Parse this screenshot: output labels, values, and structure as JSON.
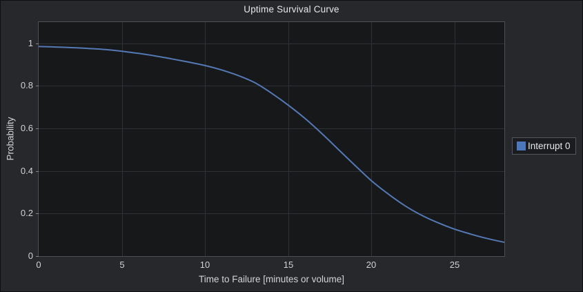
{
  "panel": {
    "background": "#26282c",
    "plot_background": "#17181a",
    "grid_color": "#2e3135",
    "axis_border_color": "#4c5055",
    "text_color": "#d1d2d3"
  },
  "chart_data": {
    "type": "line",
    "title": "Uptime Survival Curve",
    "xlabel": "Time to Failure [minutes or volume]",
    "ylabel": "Probability",
    "xlim": [
      0,
      28
    ],
    "ylim": [
      0,
      1.1
    ],
    "xtick_values": [
      0,
      5,
      10,
      15,
      20,
      25
    ],
    "xtick_labels": [
      "0",
      "5",
      "10",
      "15",
      "20",
      "25"
    ],
    "ytick_values": [
      0,
      0.2,
      0.4,
      0.6,
      0.8,
      1
    ],
    "ytick_labels": [
      "0",
      "0.2",
      "0.4",
      "0.6",
      "0.8",
      "1"
    ],
    "grid": true,
    "legend_position": "right",
    "series": [
      {
        "name": "Interrupt 0",
        "color": "#5479b5",
        "swatch_color": "#4c78bb",
        "x": [
          0,
          1,
          2,
          3,
          4,
          5,
          6,
          7,
          8,
          9,
          10,
          11,
          12,
          13,
          14,
          15,
          16,
          17,
          18,
          19,
          20,
          21,
          22,
          23,
          24,
          25,
          26,
          27,
          28
        ],
        "y": [
          0.985,
          0.983,
          0.98,
          0.976,
          0.971,
          0.963,
          0.953,
          0.941,
          0.927,
          0.912,
          0.896,
          0.875,
          0.849,
          0.815,
          0.766,
          0.71,
          0.648,
          0.578,
          0.503,
          0.428,
          0.355,
          0.293,
          0.238,
          0.193,
          0.157,
          0.127,
          0.103,
          0.082,
          0.065
        ]
      }
    ]
  }
}
